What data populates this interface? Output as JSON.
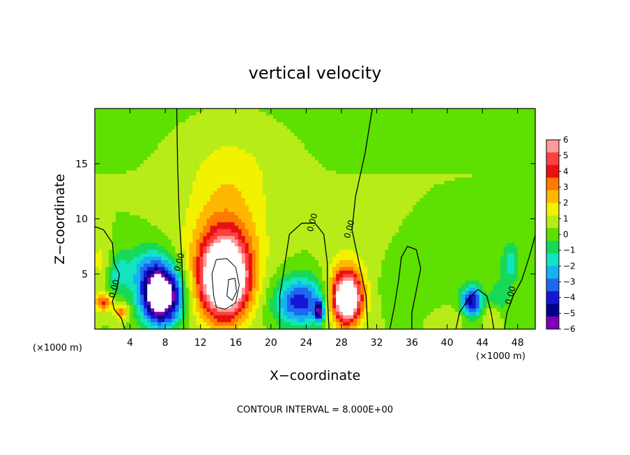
{
  "chart_data": {
    "type": "heatmap",
    "title": "vertical velocity",
    "xlabel": "X−coordinate",
    "ylabel": "Z−coordinate",
    "x_unit_left": "(×1000 m)",
    "x_unit_right": "(×1000 m)",
    "footer": "CONTOUR INTERVAL = 8.000E+00",
    "xlim": [
      0,
      50
    ],
    "ylim": [
      0,
      20
    ],
    "x_ticks": [
      4,
      8,
      12,
      16,
      20,
      24,
      28,
      32,
      36,
      40,
      44,
      48
    ],
    "x_tick_labels": [
      "4",
      "8",
      "12",
      "16",
      "20",
      "24",
      "28",
      "32",
      "36",
      "40",
      "44",
      "48"
    ],
    "y_ticks": [
      5,
      10,
      15
    ],
    "y_tick_labels": [
      "5",
      "10",
      "15"
    ],
    "colorbar": {
      "range": [
        -6,
        6
      ],
      "labels": [
        "6",
        "5",
        "4",
        "3",
        "2",
        "1",
        "0",
        "−1",
        "−2",
        "−3",
        "−4",
        "−5",
        "−6"
      ],
      "colors": [
        "#ff9a9a",
        "#ff4040",
        "#e81010",
        "#ff7a00",
        "#ffb800",
        "#f2f200",
        "#b8ec18",
        "#5ee000",
        "#18d858",
        "#10e4c0",
        "#16b2f2",
        "#1f68ef",
        "#1616d8",
        "#000088",
        "#8000ba"
      ]
    },
    "features": [
      {
        "name": "updraft-14",
        "x": 14.7,
        "z": 4.5,
        "sx": 2.8,
        "sz": 3.6,
        "w": 9.5
      },
      {
        "name": "updraft-14-halo",
        "x": 14.8,
        "z": 8.5,
        "sx": 4.5,
        "sz": 4.5,
        "w": 2.0
      },
      {
        "name": "updraft-plume-aloft",
        "x": 15.5,
        "z": 14.5,
        "sx": 5.0,
        "sz": 4.0,
        "w": 1.0
      },
      {
        "name": "updraft-28",
        "x": 28.6,
        "z": 2.7,
        "sx": 1.7,
        "sz": 2.3,
        "w": 8.5
      },
      {
        "name": "updraft-28-halo",
        "x": 28.6,
        "z": 5.0,
        "sx": 2.6,
        "sz": 3.0,
        "w": 1.0
      },
      {
        "name": "downdraft-8",
        "x": 7.5,
        "z": 3.0,
        "sx": 2.2,
        "sz": 2.5,
        "w": -9.0
      },
      {
        "name": "downdraft-6",
        "x": 6.0,
        "z": 5.5,
        "sx": 2.5,
        "sz": 2.2,
        "w": -2.0
      },
      {
        "name": "downdraft-24",
        "x": 23.3,
        "z": 2.5,
        "sx": 2.8,
        "sz": 2.2,
        "w": -4.5
      },
      {
        "name": "downdraft-25",
        "x": 25.5,
        "z": 1.6,
        "sx": 0.5,
        "sz": 0.9,
        "w": -5.0
      },
      {
        "name": "downdraft-43",
        "x": 42.8,
        "z": 2.5,
        "sx": 1.2,
        "sz": 1.4,
        "w": -5.0
      },
      {
        "name": "downdraft-48",
        "x": 47.2,
        "z": 6.0,
        "sx": 1.0,
        "sz": 1.8,
        "w": -2.2
      },
      {
        "name": "downdraft-46",
        "x": 46.0,
        "z": 3.0,
        "sx": 1.2,
        "sz": 1.5,
        "w": -1.5
      },
      {
        "name": "downdraft-36",
        "x": 36.0,
        "z": 4.0,
        "sx": 3.0,
        "sz": 2.0,
        "w": -0.8
      },
      {
        "name": "updraft-1",
        "x": 1.0,
        "z": 2.4,
        "sx": 1.0,
        "sz": 0.8,
        "w": 3.5
      },
      {
        "name": "updraft-3",
        "x": 3.0,
        "z": 1.5,
        "sx": 0.8,
        "sz": 0.7,
        "w": 3.0
      },
      {
        "name": "updraft-edge-left",
        "x": 0.8,
        "z": 6.0,
        "sx": 1.2,
        "sz": 2.0,
        "w": 1.3
      },
      {
        "name": "downdraft-left-edge",
        "x": 2.5,
        "z": 5.0,
        "sx": 1.5,
        "sz": 2.0,
        "w": -1.8
      },
      {
        "name": "updraft-45",
        "x": 45.0,
        "z": 1.2,
        "sx": 1.0,
        "sz": 0.8,
        "w": 1.2
      },
      {
        "name": "updraft-40",
        "x": 40.5,
        "z": 1.0,
        "sx": 2.0,
        "sz": 0.8,
        "w": 0.7
      }
    ],
    "zero_contours": [
      {
        "label": "0.00",
        "points": [
          [
            9.3,
            20
          ],
          [
            9.4,
            15
          ],
          [
            9.6,
            10
          ],
          [
            9.9,
            6
          ],
          [
            10.0,
            3
          ],
          [
            10.1,
            0
          ]
        ]
      },
      {
        "label": "0.00",
        "points": [
          [
            31.5,
            20
          ],
          [
            30.7,
            16
          ],
          [
            29.6,
            12
          ],
          [
            29.2,
            9
          ],
          [
            30.0,
            6
          ],
          [
            30.8,
            3
          ],
          [
            31.0,
            0
          ]
        ]
      },
      {
        "label": "0.00",
        "points": [
          [
            21.0,
            0
          ],
          [
            21.0,
            3
          ],
          [
            21.4,
            5
          ],
          [
            22.1,
            8.6
          ],
          [
            23.5,
            9.6
          ],
          [
            25.0,
            9.6
          ],
          [
            26.0,
            8.6
          ],
          [
            26.4,
            6.0
          ],
          [
            26.4,
            3
          ],
          [
            26.6,
            0
          ]
        ]
      },
      {
        "label": "0.00",
        "points": [
          [
            0,
            9.3
          ],
          [
            1.0,
            9.0
          ],
          [
            2.0,
            7.8
          ],
          [
            2.2,
            6.0
          ],
          [
            2.8,
            5.0
          ],
          [
            2.5,
            3.6
          ],
          [
            2.0,
            2.5
          ],
          [
            2.2,
            1.8
          ],
          [
            3.0,
            1.0
          ],
          [
            3.4,
            0
          ]
        ]
      },
      {
        "label": "0.00",
        "points": [
          [
            50,
            8.5
          ],
          [
            49.3,
            6.5
          ],
          [
            48.5,
            4.5
          ],
          [
            47.5,
            3.0
          ],
          [
            46.8,
            1.5
          ],
          [
            46.5,
            0
          ]
        ]
      },
      {
        "label": "",
        "points": [
          [
            33.5,
            0
          ],
          [
            34.0,
            2.0
          ],
          [
            34.5,
            4.5
          ],
          [
            34.8,
            6.5
          ],
          [
            35.5,
            7.5
          ],
          [
            36.5,
            7.2
          ],
          [
            37.0,
            5.5
          ],
          [
            36.5,
            3.5
          ],
          [
            36.0,
            1.5
          ],
          [
            36.0,
            0
          ]
        ]
      },
      {
        "label": "",
        "points": [
          [
            41.0,
            0
          ],
          [
            41.4,
            1.5
          ],
          [
            42.5,
            2.8
          ],
          [
            43.5,
            3.6
          ],
          [
            44.5,
            3.0
          ],
          [
            45.0,
            1.5
          ],
          [
            45.3,
            0
          ]
        ]
      }
    ],
    "high_contours": [
      {
        "points": [
          [
            13.5,
            3.0
          ],
          [
            13.3,
            5.0
          ],
          [
            13.8,
            6.3
          ],
          [
            15.0,
            6.4
          ],
          [
            16.0,
            5.6
          ],
          [
            16.4,
            4.0
          ],
          [
            16.0,
            2.4
          ],
          [
            14.8,
            1.8
          ],
          [
            13.8,
            2.0
          ],
          [
            13.5,
            3.0
          ]
        ]
      },
      {
        "points": [
          [
            15.0,
            3.0
          ],
          [
            15.2,
            4.5
          ],
          [
            15.9,
            4.6
          ],
          [
            16.1,
            3.4
          ],
          [
            15.6,
            2.6
          ],
          [
            15.0,
            3.0
          ]
        ]
      },
      {
        "points": [
          [
            25.1,
            1.2
          ],
          [
            25.0,
            1.8
          ],
          [
            25.3,
            2.2
          ],
          [
            25.6,
            1.8
          ],
          [
            25.5,
            1.2
          ],
          [
            25.1,
            1.2
          ]
        ]
      }
    ]
  }
}
